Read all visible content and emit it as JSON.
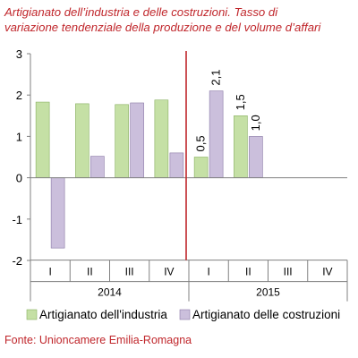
{
  "chart_data": {
    "type": "bar",
    "title_lines": [
      "Artigianato dell’industria e delle costruzioni. Tasso di",
      "variazione tendenziale della produzione e del volume d’affari"
    ],
    "categories": [
      "I",
      "II",
      "III",
      "IV",
      "I",
      "II",
      "III",
      "IV"
    ],
    "groups": [
      {
        "label": "2014",
        "span": [
          0,
          3
        ]
      },
      {
        "label": "2015",
        "span": [
          4,
          7
        ]
      }
    ],
    "series": [
      {
        "name": "Artigianato dell'industria",
        "color": "#c5e0a5",
        "stroke": "#88b060",
        "values": [
          1.83,
          1.79,
          1.77,
          1.88,
          0.5,
          1.5,
          null,
          null
        ],
        "labels": [
          null,
          null,
          null,
          null,
          "0,5",
          "1,5",
          null,
          null
        ]
      },
      {
        "name": "Artigianato delle costruzioni",
        "color": "#cbbfdc",
        "stroke": "#8b7aa6",
        "values": [
          -1.7,
          0.52,
          1.81,
          0.6,
          2.1,
          1.0,
          null,
          null
        ],
        "labels": [
          null,
          null,
          null,
          null,
          "2,1",
          "1,0",
          null,
          null
        ]
      }
    ],
    "ylim": [
      -2,
      3
    ],
    "yticks": [
      -2,
      -1,
      0,
      1,
      2,
      3
    ],
    "ytick_labels": [
      "-2",
      "-1",
      "0",
      "1",
      "2",
      "3"
    ],
    "divider_color": "#c0262b",
    "legend_position": "bottom",
    "source": "Fonte: Unioncamere Emilia-Romagna"
  }
}
